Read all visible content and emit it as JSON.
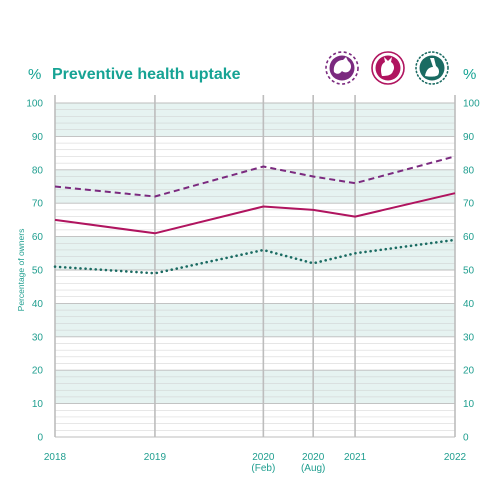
{
  "colors": {
    "accent": "#16a394",
    "dog": "#7b2a7f",
    "cat": "#b0145f",
    "rabbit": "#1a6b62",
    "band": "#e6f3f1",
    "gridline": "#c9c9c9",
    "yearline": "#bdbdbd"
  },
  "header": {
    "title": "Preventive health uptake",
    "percent_left": "%",
    "percent_right": "%"
  },
  "icons": [
    {
      "name": "dog-icon",
      "style": "dashed",
      "color": "#7b2a7f"
    },
    {
      "name": "cat-icon",
      "style": "solid",
      "color": "#b0145f"
    },
    {
      "name": "rabbit-icon",
      "style": "dotted",
      "color": "#1a6b62"
    }
  ],
  "chart_data": {
    "type": "line",
    "title": "Preventive health uptake",
    "ylabel": "Percentage of owners",
    "ylim": [
      0,
      100
    ],
    "yticks": [
      0,
      10,
      20,
      30,
      40,
      50,
      60,
      70,
      80,
      90,
      100
    ],
    "x_labels": [
      {
        "label": "2018",
        "sub": ""
      },
      {
        "label": "2019",
        "sub": ""
      },
      {
        "label": "2020",
        "sub": "(Feb)"
      },
      {
        "label": "2020",
        "sub": "(Aug)"
      },
      {
        "label": "2021",
        "sub": ""
      },
      {
        "label": "2022",
        "sub": ""
      }
    ],
    "x_dates": [
      "2018-01-01",
      "2019-01-01",
      "2020-02-01",
      "2020-08-01",
      "2021-01-01",
      "2022-01-01"
    ],
    "series": [
      {
        "icon": "dog-icon",
        "style": "dashed",
        "color": "#7b2a7f",
        "values": [
          75,
          72,
          81,
          78,
          76,
          84
        ]
      },
      {
        "icon": "cat-icon",
        "style": "solid",
        "color": "#b0145f",
        "values": [
          65,
          61,
          69,
          68,
          66,
          73
        ]
      },
      {
        "icon": "rabbit-icon",
        "style": "dotted",
        "color": "#1a6b62",
        "values": [
          51,
          49,
          56,
          52,
          55,
          59
        ]
      }
    ]
  }
}
